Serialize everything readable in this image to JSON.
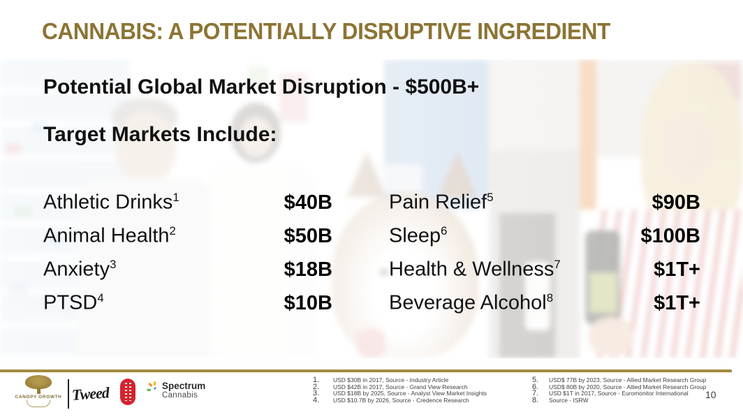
{
  "slide": {
    "title": "CANNABIS: A POTENTIALLY DISRUPTIVE INGREDIENT",
    "subtitle": "Potential Global Market Disruption - $500B+",
    "target_heading": "Target Markets Include:",
    "page_number": "10"
  },
  "markets": {
    "left": [
      {
        "label": "Athletic Drinks",
        "footnote": "1",
        "value": "$40B"
      },
      {
        "label": "Animal Health",
        "footnote": "2",
        "value": "$50B"
      },
      {
        "label": "Anxiety",
        "footnote": "3",
        "value": "$18B"
      },
      {
        "label": "PTSD",
        "footnote": "4",
        "value": "$10B"
      }
    ],
    "right": [
      {
        "label": "Pain Relief",
        "footnote": "5",
        "value": "$90B"
      },
      {
        "label": "Sleep",
        "footnote": "6",
        "value": "$100B"
      },
      {
        "label": "Health & Wellness",
        "footnote": "7",
        "value": "$1T+"
      },
      {
        "label": "Beverage Alcohol",
        "footnote": "8",
        "value": "$1T+"
      }
    ]
  },
  "footnotes": {
    "left": [
      {
        "num": "1.",
        "text": "USD $30B in 2017, Source - Industry Article"
      },
      {
        "num": "2.",
        "text": "USD $42B in 2017, Source - Grand View Research"
      },
      {
        "num": "3.",
        "text": "USD $18B by 2025, Source - Analyst View Market Insights"
      },
      {
        "num": "4.",
        "text": "USD $10.7B by 2026, Source - Credence Research"
      }
    ],
    "right": [
      {
        "num": "5.",
        "text": "USD$ 77B by 2023, Source - Allied Market Research Group"
      },
      {
        "num": "6.",
        "text": "USD$ 80B by 2020, Source - Allied Market Research Group"
      },
      {
        "num": "7.",
        "text": "USD $1T in 2017, Source - Euromonitor International"
      },
      {
        "num": "8.",
        "text": "Source - ISRW"
      }
    ]
  },
  "footer": {
    "canopy_label": "CANOPY GROWTH",
    "tweed_label": "Tweed",
    "spectrum_line1": "Spectrum",
    "spectrum_line2": "Cannabis",
    "icons": {
      "canopy_tree": "gold-tree-emblem",
      "tokyo_smoke": "red-pill-vertical-wordmark",
      "spectrum_sparkle": "multicolor-burst"
    }
  },
  "colors": {
    "title_gold": "#8C7434",
    "rule_gold": "#A38C3F",
    "text_black": "#111111",
    "footnote_gray": "#3F3F3F",
    "tokyo_smoke_red": "#D5232E",
    "canopy_gold": "#9A8038"
  }
}
